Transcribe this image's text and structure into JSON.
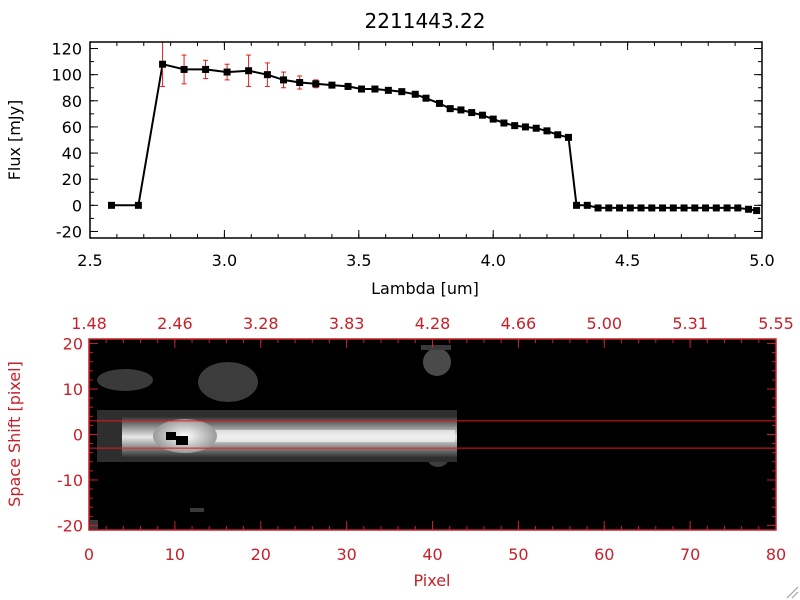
{
  "title": "2211443.22",
  "chart_data": [
    {
      "type": "line",
      "xlabel": "Lambda [um]",
      "ylabel": "Flux [mJy]",
      "xlim": [
        2.5,
        5.0
      ],
      "ylim": [
        -25,
        125
      ],
      "x_ticks": [
        "2.5",
        "3.0",
        "3.5",
        "4.0",
        "4.5",
        "5.0"
      ],
      "x_tick_values": [
        2.5,
        3.0,
        3.5,
        4.0,
        4.5,
        5.0
      ],
      "y_ticks": [
        "-20",
        "0",
        "20",
        "40",
        "60",
        "80",
        "100",
        "120"
      ],
      "y_tick_values": [
        -20,
        0,
        20,
        40,
        60,
        80,
        100,
        120
      ],
      "grid": false,
      "line_color": "#000000",
      "error_color": "#e41a1c",
      "x": [
        2.58,
        2.68,
        2.77,
        2.85,
        2.93,
        3.01,
        3.09,
        3.16,
        3.22,
        3.28,
        3.34,
        3.4,
        3.46,
        3.51,
        3.56,
        3.61,
        3.66,
        3.71,
        3.75,
        3.8,
        3.84,
        3.88,
        3.92,
        3.96,
        4.0,
        4.04,
        4.08,
        4.12,
        4.16,
        4.2,
        4.24,
        4.28,
        4.31,
        4.35,
        4.39,
        4.43,
        4.47,
        4.51,
        4.55,
        4.59,
        4.63,
        4.67,
        4.71,
        4.75,
        4.79,
        4.83,
        4.87,
        4.91,
        4.95,
        4.98
      ],
      "y": [
        0,
        0,
        108,
        104,
        104,
        102,
        103,
        100,
        96,
        94,
        93,
        92,
        91,
        89,
        89,
        88,
        87,
        85,
        82,
        78,
        74,
        73,
        71,
        69,
        66,
        63,
        61,
        60,
        59,
        57,
        54,
        52,
        0,
        0,
        -2,
        -2,
        -2,
        -2,
        -2,
        -2,
        -2,
        -2,
        -2,
        -2,
        -2,
        -2,
        -2,
        -2,
        -3,
        -4
      ],
      "yerr": [
        0,
        0,
        17,
        11,
        7,
        6,
        12,
        9,
        6,
        5,
        3,
        2,
        2,
        2,
        2,
        2,
        2,
        2,
        2,
        2,
        2,
        2,
        2,
        2,
        2,
        2,
        2,
        2,
        2,
        2,
        2,
        2,
        1,
        1,
        1,
        1,
        1,
        1,
        1,
        1,
        1,
        1,
        1,
        1,
        1,
        1,
        1,
        1,
        1,
        1
      ]
    },
    {
      "type": "heatmap",
      "xlabel": "Pixel",
      "ylabel": "Space Shift [pixel]",
      "xlim": [
        0,
        80
      ],
      "ylim": [
        -21,
        21
      ],
      "x_ticks": [
        "0",
        "10",
        "20",
        "30",
        "40",
        "50",
        "60",
        "70",
        "80"
      ],
      "x_tick_values": [
        0,
        10,
        20,
        30,
        40,
        50,
        60,
        70,
        80
      ],
      "y_ticks": [
        "-20",
        "-10",
        "0",
        "10",
        "20"
      ],
      "y_tick_values": [
        -20,
        -10,
        0,
        10,
        20
      ],
      "top_ticks": [
        "1.48",
        "2.46",
        "3.28",
        "3.83",
        "4.28",
        "4.66",
        "5.00",
        "5.31",
        "5.55"
      ],
      "top_tick_values": [
        0,
        10,
        20,
        30,
        40,
        50,
        60,
        70,
        80
      ],
      "axis_color": "#c8202a",
      "colormap": "gray",
      "extraction_window": [
        -3,
        3
      ],
      "window_line_color": "#e41a1c",
      "emission_extent_pixels": [
        0,
        43
      ]
    }
  ]
}
